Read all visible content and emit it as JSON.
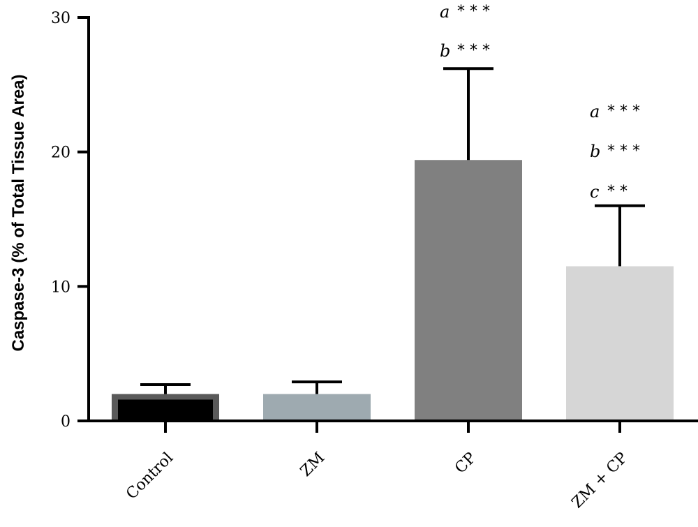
{
  "chart_data": {
    "type": "bar",
    "categories": [
      "Control",
      "ZM",
      "CP",
      "ZM + CP"
    ],
    "values": [
      2.0,
      2.0,
      19.4,
      11.5
    ],
    "errors": [
      0.7,
      0.9,
      6.8,
      4.5
    ],
    "bar_colors": [
      "#000000",
      "#9eaab0",
      "#808080",
      "#d6d6d6"
    ],
    "bar_outline": [
      "#5a5a5a",
      null,
      null,
      null
    ],
    "ylabel": "Caspase-3 (% of Total Tissue Area)",
    "xlabel": "",
    "ylim": [
      0,
      30
    ],
    "yticks": [
      0,
      10,
      20,
      30
    ],
    "grid": false,
    "annotations": [
      {
        "category": "CP",
        "lines": [
          {
            "letter": "a",
            "stars": "* * *"
          },
          {
            "letter": "b",
            "stars": "* * *"
          }
        ]
      },
      {
        "category": "ZM + CP",
        "lines": [
          {
            "letter": "a",
            "stars": "* * *"
          },
          {
            "letter": "b",
            "stars": "* * *"
          },
          {
            "letter": "c",
            "stars": "* *"
          }
        ]
      }
    ]
  }
}
